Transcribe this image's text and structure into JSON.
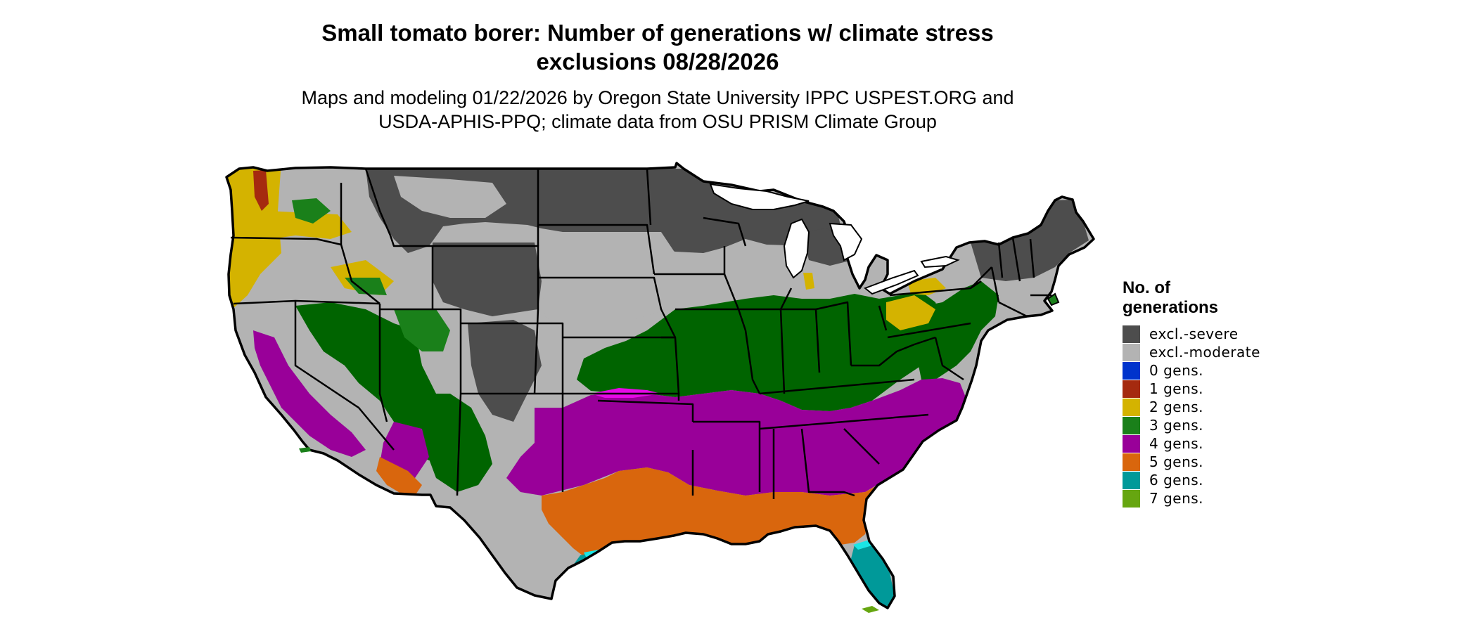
{
  "title_lines": [
    "Small tomato borer: Number of generations w/ climate stress",
    "exclusions 08/28/2026"
  ],
  "subtitle_lines": [
    "Maps and modeling 01/22/2026 by Oregon State University IPPC USPEST.ORG and",
    "USDA-APHIS-PPQ; climate data from OSU PRISM Climate Group"
  ],
  "legend": {
    "title_lines": [
      "No. of",
      "generations"
    ],
    "items": [
      {
        "label": "excl.-severe",
        "color": "#4d4d4d"
      },
      {
        "label": "excl.-moderate",
        "color": "#b3b3b3"
      },
      {
        "label": "0 gens.",
        "color": "#0033cc"
      },
      {
        "label": "1 gens.",
        "color": "#a52a0f"
      },
      {
        "label": "2 gens.",
        "color": "#d4b300"
      },
      {
        "label": "3 gens.",
        "color": "#1a801a"
      },
      {
        "label": "4 gens.",
        "color": "#990099"
      },
      {
        "label": "5 gens.",
        "color": "#d9660d"
      },
      {
        "label": "6 gens.",
        "color": "#009999"
      },
      {
        "label": "7 gens.",
        "color": "#66a610"
      }
    ]
  },
  "map_colors": {
    "excl_severe": "#4d4d4d",
    "excl_moderate": "#b3b3b3",
    "gens_1": "#a52a0f",
    "gens_2": "#d4b300",
    "gens_3": "#006400",
    "gens_3_light": "#1a801a",
    "gens_4": "#990099",
    "gens_4_bright": "#e60ae6",
    "gens_5": "#d9660d",
    "gens_6": "#009999",
    "gens_6_bright": "#1ae6e6",
    "gens_7": "#66a610",
    "water": "#ffffff",
    "border": "#000000"
  }
}
